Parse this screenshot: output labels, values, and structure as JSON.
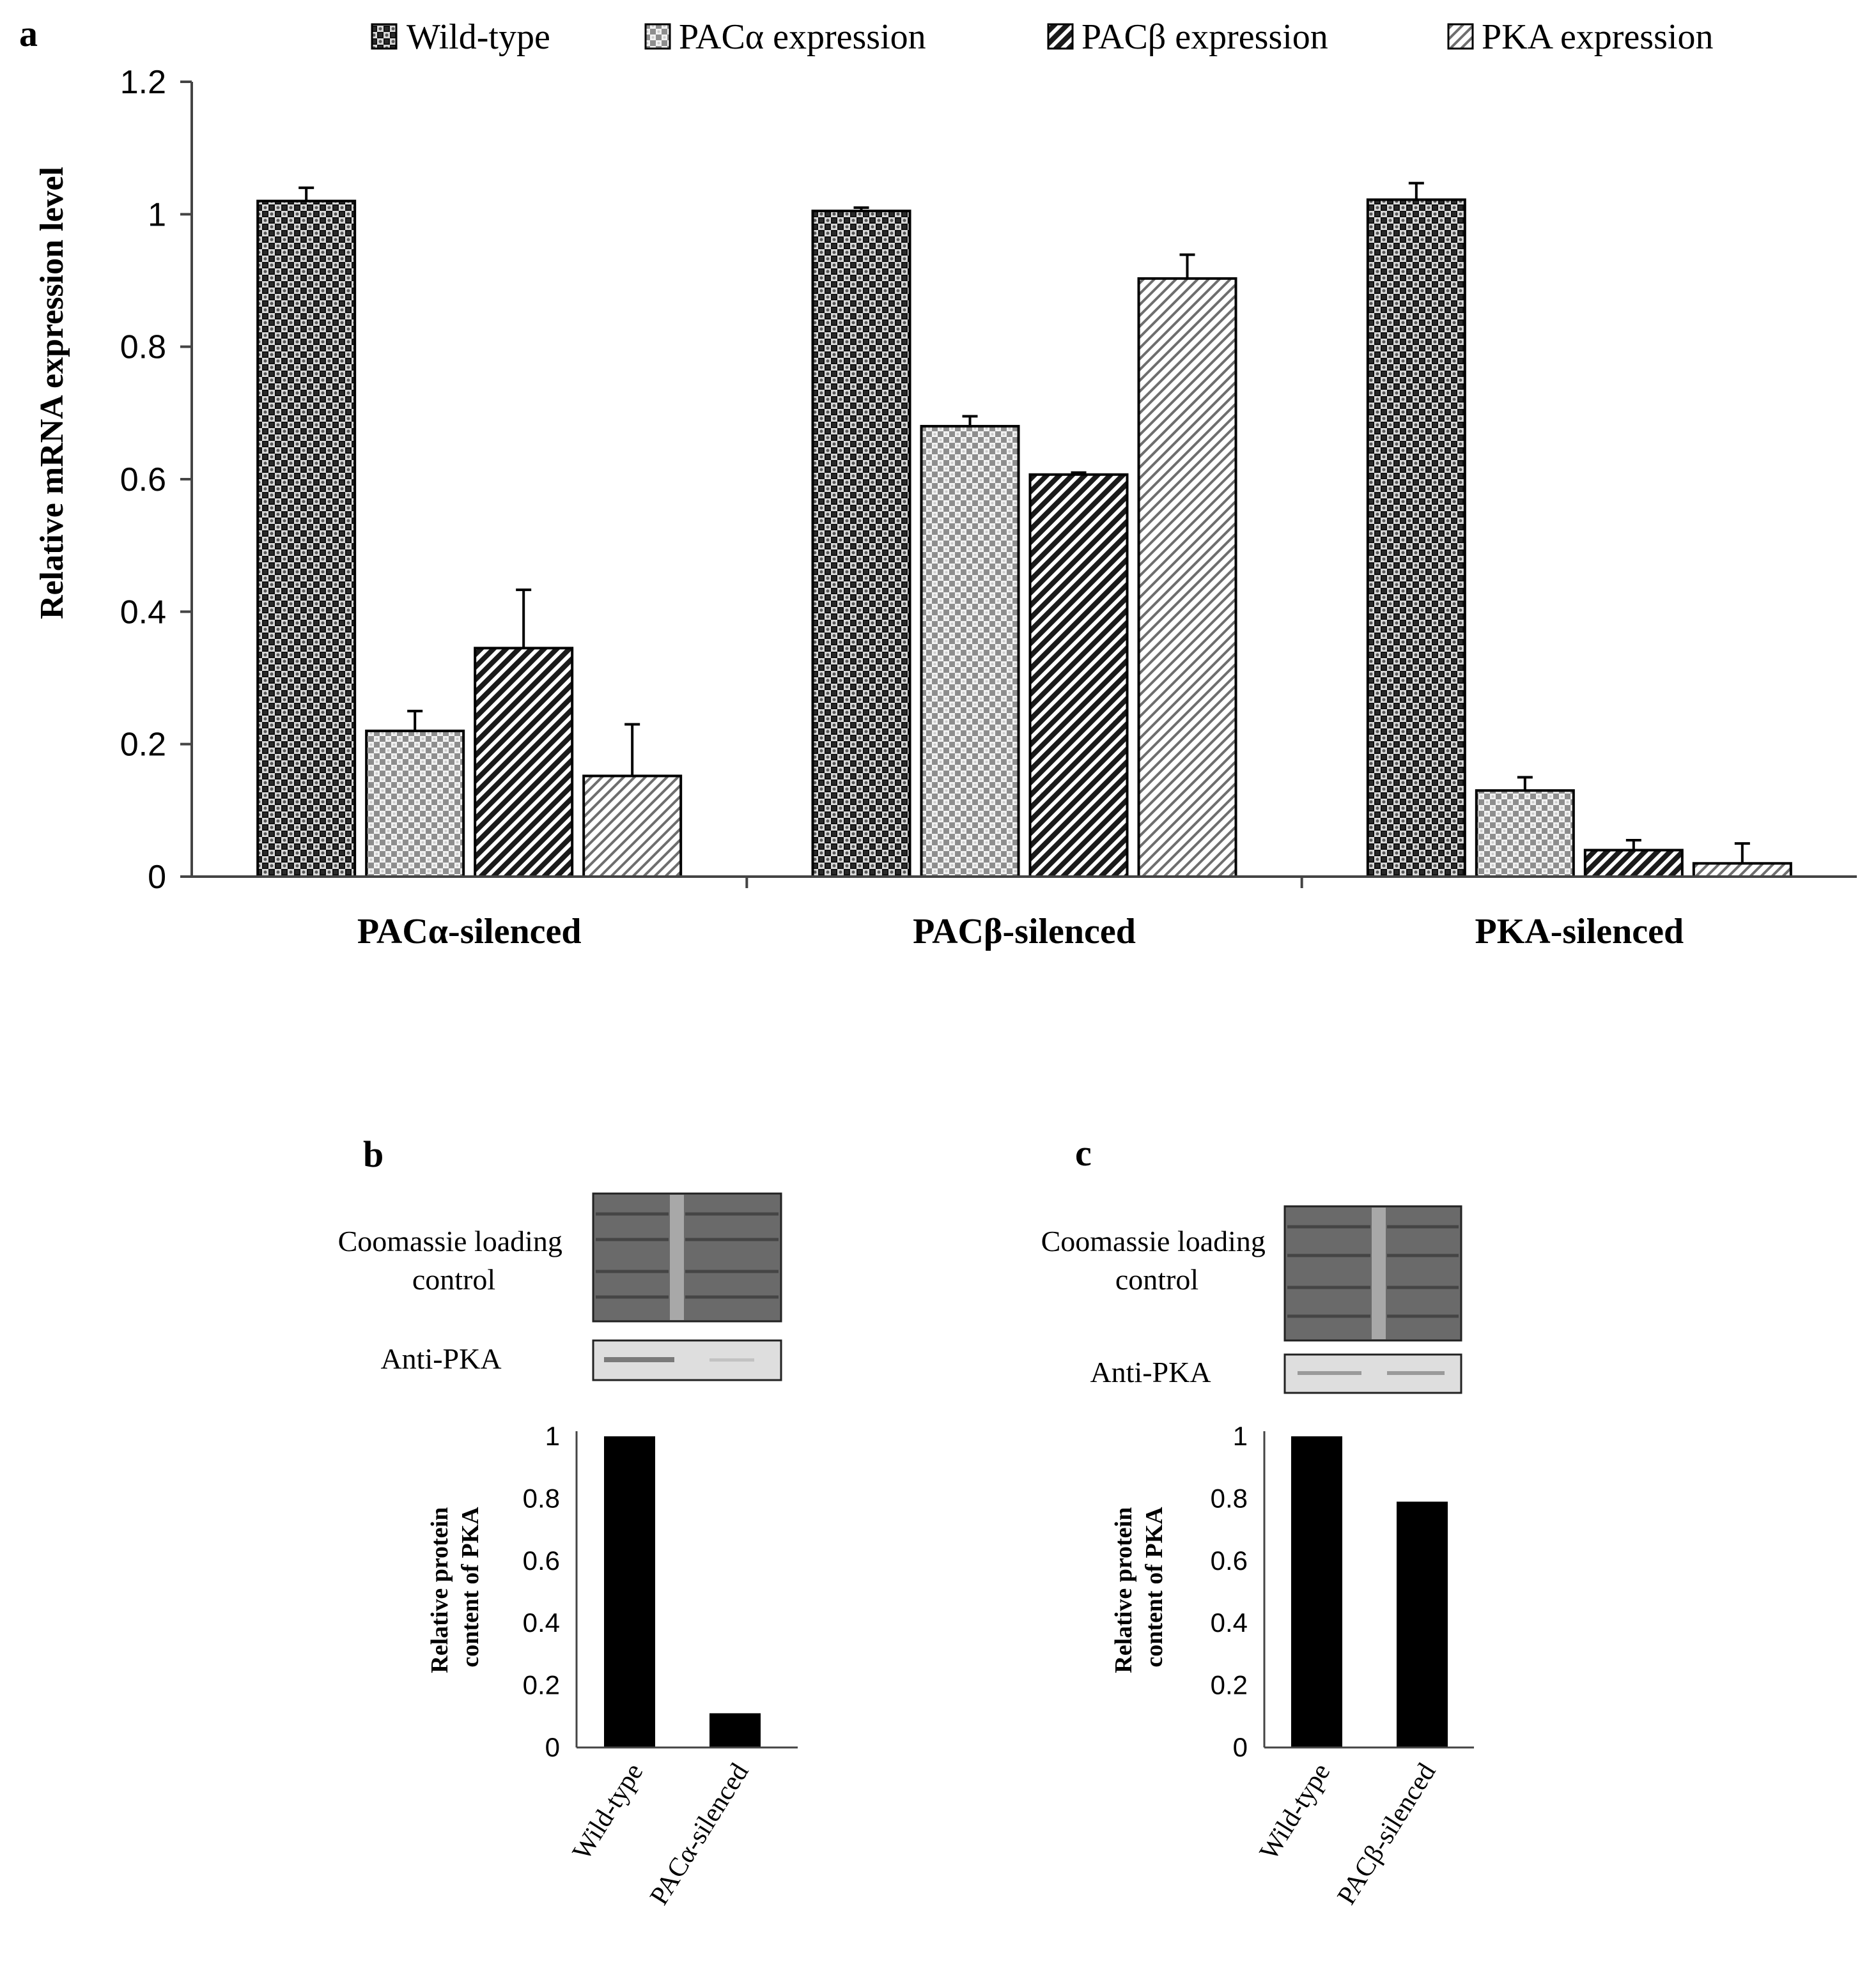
{
  "colors": {
    "wild_type": "#111111",
    "pac_alpha": "#8a8a8a",
    "pac_beta": "#2a2a2a",
    "pka": "#9a9a9a",
    "bar_solid": "#000000"
  },
  "chart_data": [
    {
      "panel": "a",
      "type": "bar",
      "title": "",
      "xlabel": "",
      "ylabel": "Relative mRNA expression level",
      "ylim": [
        0,
        1.2
      ],
      "yticks": [
        "0",
        "0.2",
        "0.4",
        "0.6",
        "0.8",
        "1",
        "1.2"
      ],
      "categories": [
        "PACα-silenced",
        "PACβ-silenced",
        "PKA-silenced"
      ],
      "legend_position": "top",
      "series": [
        {
          "name": "Wild-type",
          "pattern": "checker",
          "values": [
            1.02,
            1.005,
            1.022
          ],
          "errors": [
            0.02,
            0.005,
            0.025
          ]
        },
        {
          "name": "PACα expression",
          "pattern": "grid",
          "values": [
            0.22,
            0.68,
            0.13
          ],
          "errors": [
            0.03,
            0.015,
            0.02
          ]
        },
        {
          "name": "PACβ expression",
          "pattern": "diag-dense",
          "values": [
            0.345,
            0.607,
            0.04
          ],
          "errors": [
            0.088,
            0.003,
            0.015
          ]
        },
        {
          "name": "PKA expression",
          "pattern": "diag-light",
          "values": [
            0.152,
            0.903,
            0.02
          ],
          "errors": [
            0.078,
            0.036,
            0.03
          ]
        }
      ]
    },
    {
      "panel": "b",
      "type": "bar",
      "ylabel": "Relative protein content of PKA",
      "ylim": [
        0,
        1
      ],
      "yticks": [
        "0",
        "0.2",
        "0.4",
        "0.6",
        "0.8",
        "1"
      ],
      "categories": [
        "Wild-type",
        "PACα-silenced"
      ],
      "values": [
        1.0,
        0.11
      ],
      "blot": {
        "stain_label": "Coomassie loading control",
        "antibody_label": "Anti-PKA"
      }
    },
    {
      "panel": "c",
      "type": "bar",
      "ylabel": "Relative protein content of PKA",
      "ylim": [
        0,
        1
      ],
      "yticks": [
        "0",
        "0.2",
        "0.4",
        "0.6",
        "0.8",
        "1"
      ],
      "categories": [
        "Wild-type",
        "PACβ-silenced"
      ],
      "values": [
        1.0,
        0.79
      ],
      "blot": {
        "stain_label": "Coomassie loading control",
        "antibody_label": "Anti-PKA"
      }
    }
  ]
}
